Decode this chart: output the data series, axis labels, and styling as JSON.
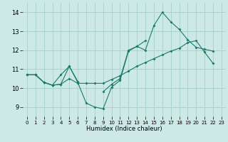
{
  "xlabel": "Humidex (Indice chaleur)",
  "bg_color": "#cce9e5",
  "grid_color": "#aad4cf",
  "line_color": "#1a7a6e",
  "xlim": [
    -0.5,
    23.5
  ],
  "ylim": [
    8.5,
    14.5
  ],
  "xticks": [
    0,
    1,
    2,
    3,
    4,
    5,
    6,
    7,
    8,
    9,
    10,
    11,
    12,
    13,
    14,
    15,
    16,
    17,
    18,
    19,
    20,
    21,
    22,
    23
  ],
  "yticks": [
    9,
    10,
    11,
    12,
    13,
    14
  ],
  "line1_y": [
    10.7,
    10.7,
    10.3,
    10.15,
    10.2,
    11.15,
    10.3,
    9.2,
    9.0,
    8.9,
    10.05,
    10.4,
    11.95,
    12.2,
    12.0,
    13.3,
    14.0,
    13.5,
    13.1,
    12.55,
    12.15,
    12.05,
    11.95,
    null
  ],
  "line2_y": [
    10.7,
    10.7,
    10.3,
    10.15,
    10.7,
    11.15,
    10.35,
    null,
    null,
    9.8,
    10.2,
    10.5,
    12.0,
    12.2,
    12.5,
    null,
    null,
    null,
    null,
    null,
    null,
    null,
    null,
    null
  ],
  "line3_y": [
    10.7,
    10.7,
    10.3,
    10.15,
    10.2,
    10.5,
    10.25,
    10.25,
    10.25,
    10.25,
    10.45,
    10.65,
    10.9,
    11.15,
    11.35,
    11.55,
    11.75,
    11.95,
    12.1,
    12.4,
    12.5,
    11.9,
    11.3,
    null
  ]
}
